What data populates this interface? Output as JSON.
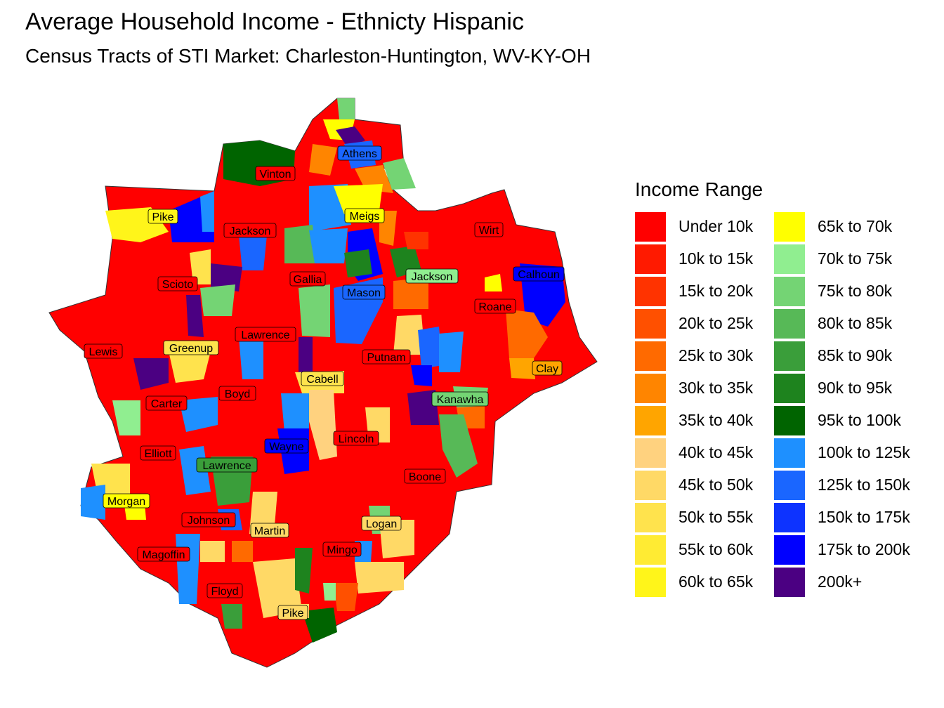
{
  "title": "Average Household Income - Ethnicty Hispanic",
  "subtitle": "Census Tracts of STI Market: Charleston-Huntington, WV-KY-OH",
  "legend": {
    "title": "Income Range",
    "items": [
      {
        "label": "Under 10k",
        "color": "#ff0000"
      },
      {
        "label": "10k to 15k",
        "color": "#ff1a00"
      },
      {
        "label": "15k to 20k",
        "color": "#ff3300"
      },
      {
        "label": "20k to 25k",
        "color": "#ff5000"
      },
      {
        "label": "25k to 30k",
        "color": "#ff6a00"
      },
      {
        "label": "30k to 35k",
        "color": "#ff8500"
      },
      {
        "label": "35k to 40k",
        "color": "#ffa500"
      },
      {
        "label": "40k to 45k",
        "color": "#ffd27f"
      },
      {
        "label": "45k to 50k",
        "color": "#ffd966"
      },
      {
        "label": "50k to 55k",
        "color": "#ffe34d"
      },
      {
        "label": "55k to 60k",
        "color": "#ffeb33"
      },
      {
        "label": "60k to 65k",
        "color": "#fff51a"
      },
      {
        "label": "65k to 70k",
        "color": "#ffff00"
      },
      {
        "label": "70k to 75k",
        "color": "#90ee90"
      },
      {
        "label": "75k to 80k",
        "color": "#74d474"
      },
      {
        "label": "80k to 85k",
        "color": "#57b957"
      },
      {
        "label": "85k to 90k",
        "color": "#3a9e3a"
      },
      {
        "label": "90k to 95k",
        "color": "#1e831e"
      },
      {
        "label": "95k to 100k",
        "color": "#006400"
      },
      {
        "label": "100k to 125k",
        "color": "#1e90ff"
      },
      {
        "label": "125k to 150k",
        "color": "#1a66ff"
      },
      {
        "label": "150k to 175k",
        "color": "#0d33ff"
      },
      {
        "label": "175k to 200k",
        "color": "#0000ff"
      },
      {
        "label": "200k+",
        "color": "#4b0082"
      }
    ]
  },
  "counties": [
    {
      "name": "Athens"
    },
    {
      "name": "Vinton"
    },
    {
      "name": "Meigs"
    },
    {
      "name": "Pike"
    },
    {
      "name": "Jackson"
    },
    {
      "name": "Wirt"
    },
    {
      "name": "Gallia"
    },
    {
      "name": "Mason"
    },
    {
      "name": "Jackson"
    },
    {
      "name": "Calhoun"
    },
    {
      "name": "Scioto"
    },
    {
      "name": "Roane"
    },
    {
      "name": "Lawrence"
    },
    {
      "name": "Lewis"
    },
    {
      "name": "Greenup"
    },
    {
      "name": "Putnam"
    },
    {
      "name": "Clay"
    },
    {
      "name": "Cabell"
    },
    {
      "name": "Boyd"
    },
    {
      "name": "Carter"
    },
    {
      "name": "Kanawha"
    },
    {
      "name": "Lincoln"
    },
    {
      "name": "Wayne"
    },
    {
      "name": "Elliott"
    },
    {
      "name": "Lawrence"
    },
    {
      "name": "Boone"
    },
    {
      "name": "Morgan"
    },
    {
      "name": "Johnson"
    },
    {
      "name": "Logan"
    },
    {
      "name": "Martin"
    },
    {
      "name": "Mingo"
    },
    {
      "name": "Magoffin"
    },
    {
      "name": "Floyd"
    },
    {
      "name": "Pike"
    }
  ]
}
